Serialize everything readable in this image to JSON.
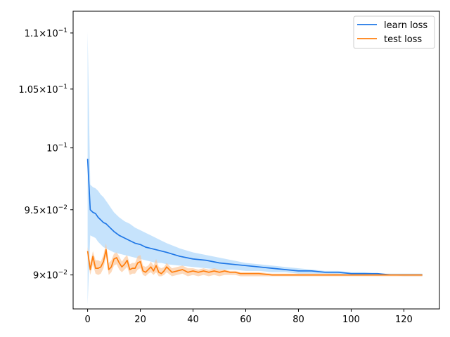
{
  "chart_data": {
    "type": "line",
    "title": "",
    "xlabel": "",
    "ylabel": "",
    "y_scale": "log",
    "xlim": [
      -5.5,
      133.5
    ],
    "ylim": [
      0.0875,
      0.112
    ],
    "grid": false,
    "legend_position": "top-right",
    "x_ticks": [
      0,
      20,
      40,
      60,
      80,
      100,
      120
    ],
    "x_tick_labels": [
      "0",
      "20",
      "40",
      "60",
      "80",
      "100",
      "120"
    ],
    "y_ticks": [
      0.09,
      0.095,
      0.1,
      0.105,
      0.11
    ],
    "y_tick_labels": [
      {
        "mantissa": "9",
        "exp": "−2"
      },
      {
        "mantissa": "9.5",
        "exp": "−2"
      },
      {
        "mantissa": "",
        "exp": "−1"
      },
      {
        "mantissa": "1.05",
        "exp": "−1"
      },
      {
        "mantissa": "1.1",
        "exp": "−1"
      }
    ],
    "series": [
      {
        "name": "learn loss",
        "color": "#1f77e6",
        "band_color": "#a8d4fa",
        "x": [
          0,
          1,
          2,
          3,
          4,
          5,
          6,
          7,
          8,
          9,
          10,
          12,
          14,
          16,
          18,
          20,
          22,
          24,
          26,
          28,
          30,
          35,
          40,
          45,
          50,
          55,
          60,
          65,
          70,
          75,
          80,
          85,
          90,
          95,
          100,
          105,
          110,
          115,
          120,
          125,
          127
        ],
        "y": [
          0.0991,
          0.095,
          0.0948,
          0.0947,
          0.0944,
          0.0942,
          0.094,
          0.0939,
          0.0937,
          0.0935,
          0.0933,
          0.093,
          0.0928,
          0.0926,
          0.0924,
          0.0923,
          0.0921,
          0.092,
          0.0919,
          0.0918,
          0.0917,
          0.0914,
          0.0912,
          0.0911,
          0.0909,
          0.0908,
          0.0907,
          0.0906,
          0.0905,
          0.0904,
          0.0903,
          0.0903,
          0.0902,
          0.0902,
          0.0901,
          0.0901,
          0.0901,
          0.09,
          0.09,
          0.09,
          0.09
        ],
        "upper": [
          0.1101,
          0.097,
          0.0968,
          0.0967,
          0.0965,
          0.0962,
          0.096,
          0.0957,
          0.0954,
          0.0951,
          0.0948,
          0.0944,
          0.0941,
          0.0939,
          0.0936,
          0.0934,
          0.0932,
          0.093,
          0.0928,
          0.0926,
          0.0924,
          0.092,
          0.0917,
          0.0915,
          0.0913,
          0.0911,
          0.0909,
          0.0908,
          0.0907,
          0.0906,
          0.0905,
          0.0904,
          0.0903,
          0.0903,
          0.0902,
          0.0902,
          0.0901,
          0.0901,
          0.0901,
          0.0901,
          0.0901
        ],
        "lower": [
          0.0878,
          0.093,
          0.0929,
          0.0928,
          0.0925,
          0.0923,
          0.0921,
          0.092,
          0.0919,
          0.0918,
          0.0917,
          0.0916,
          0.0915,
          0.0914,
          0.0913,
          0.0912,
          0.0911,
          0.091,
          0.0909,
          0.0909,
          0.0908,
          0.0907,
          0.0906,
          0.0905,
          0.0904,
          0.0904,
          0.0903,
          0.0903,
          0.0902,
          0.0902,
          0.0901,
          0.0901,
          0.0901,
          0.09,
          0.09,
          0.09,
          0.09,
          0.09,
          0.0899,
          0.0899,
          0.0899
        ]
      },
      {
        "name": "test loss",
        "color": "#ff7f0e",
        "band_color": "#fcc596",
        "x": [
          0,
          1,
          2,
          3,
          4,
          5,
          6,
          7,
          8,
          9,
          10,
          11,
          12,
          13,
          14,
          15,
          16,
          17,
          18,
          19,
          20,
          21,
          22,
          23,
          24,
          25,
          26,
          27,
          28,
          29,
          30,
          32,
          34,
          36,
          38,
          40,
          42,
          44,
          46,
          48,
          50,
          52,
          54,
          56,
          58,
          60,
          65,
          70,
          75,
          80,
          85,
          90,
          95,
          100,
          105,
          110,
          115,
          120,
          125,
          127
        ],
        "y": [
          0.0918,
          0.0904,
          0.0914,
          0.0905,
          0.0905,
          0.0906,
          0.091,
          0.0919,
          0.0904,
          0.0906,
          0.0912,
          0.0913,
          0.0909,
          0.0906,
          0.0908,
          0.0911,
          0.0904,
          0.0905,
          0.0905,
          0.0909,
          0.091,
          0.0903,
          0.0902,
          0.0904,
          0.0906,
          0.0903,
          0.0907,
          0.0902,
          0.0901,
          0.0903,
          0.0906,
          0.0902,
          0.0903,
          0.0904,
          0.0902,
          0.0903,
          0.0902,
          0.0903,
          0.0902,
          0.0903,
          0.0902,
          0.0903,
          0.0902,
          0.0902,
          0.0901,
          0.0901,
          0.0901,
          0.09,
          0.09,
          0.09,
          0.09,
          0.09,
          0.09,
          0.09,
          0.09,
          0.09,
          0.09,
          0.09,
          0.09,
          0.09
        ],
        "upper": [
          0.0921,
          0.0909,
          0.0918,
          0.0911,
          0.0911,
          0.091,
          0.0915,
          0.0924,
          0.0909,
          0.0911,
          0.0916,
          0.0917,
          0.0914,
          0.091,
          0.0913,
          0.0915,
          0.0908,
          0.0909,
          0.0909,
          0.0914,
          0.0915,
          0.0907,
          0.0906,
          0.0907,
          0.091,
          0.0907,
          0.0912,
          0.0906,
          0.0905,
          0.0906,
          0.0909,
          0.0905,
          0.0906,
          0.0907,
          0.0905,
          0.0905,
          0.0904,
          0.0905,
          0.0904,
          0.0905,
          0.0904,
          0.0904,
          0.0903,
          0.0903,
          0.0902,
          0.0902,
          0.0902,
          0.0901,
          0.0901,
          0.0901,
          0.0901,
          0.0901,
          0.0901,
          0.09,
          0.09,
          0.09,
          0.09,
          0.09,
          0.09,
          0.09
        ],
        "lower": [
          0.0913,
          0.09,
          0.0908,
          0.0901,
          0.09,
          0.0901,
          0.0905,
          0.0914,
          0.09,
          0.0902,
          0.0907,
          0.0908,
          0.0904,
          0.0902,
          0.0904,
          0.0906,
          0.09,
          0.0901,
          0.0901,
          0.0904,
          0.0905,
          0.09,
          0.0899,
          0.0901,
          0.0902,
          0.09,
          0.0902,
          0.0899,
          0.0899,
          0.09,
          0.0902,
          0.0899,
          0.09,
          0.0901,
          0.0899,
          0.09,
          0.0899,
          0.09,
          0.0899,
          0.09,
          0.0899,
          0.09,
          0.09,
          0.09,
          0.0899,
          0.0899,
          0.0899,
          0.0899,
          0.0899,
          0.0899,
          0.0899,
          0.0899,
          0.0899,
          0.0899,
          0.0899,
          0.0899,
          0.0899,
          0.0899,
          0.0899,
          0.0899
        ]
      }
    ]
  }
}
